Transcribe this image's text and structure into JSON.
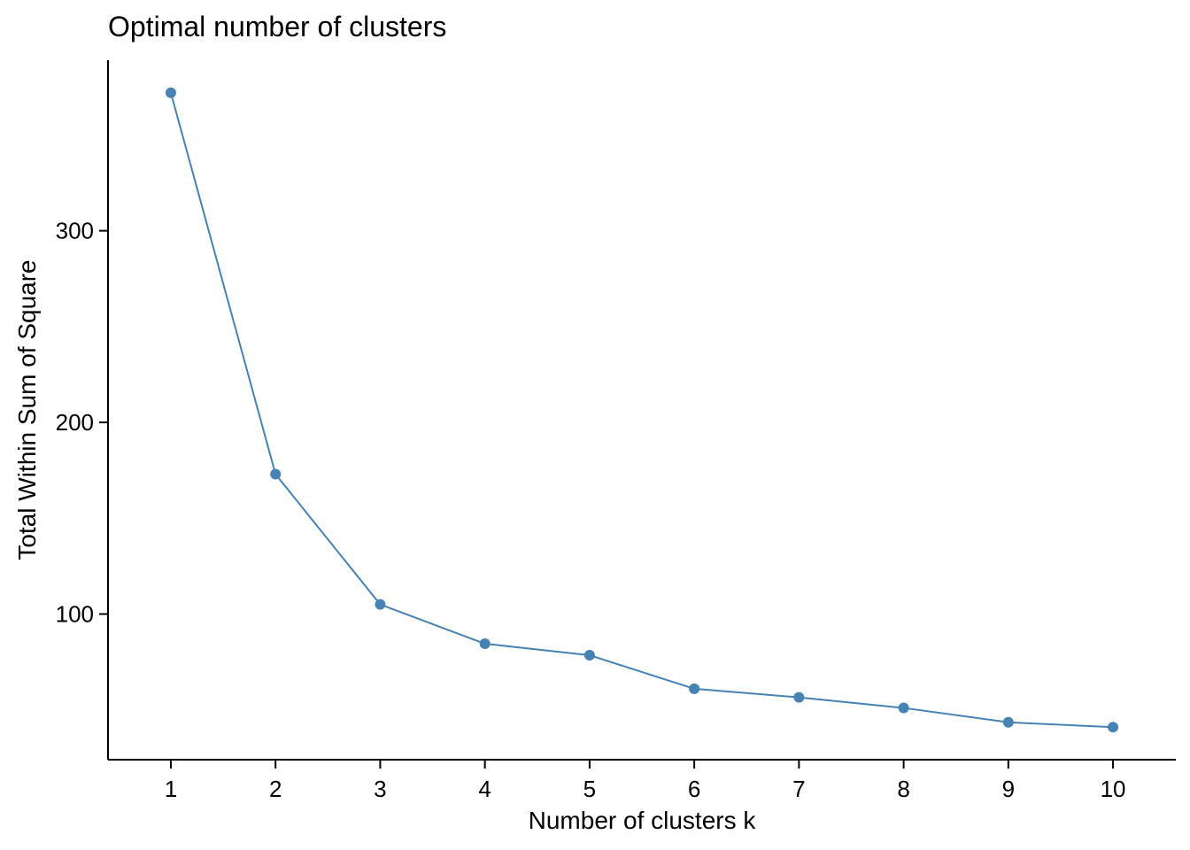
{
  "chart_data": {
    "type": "line",
    "title": "Optimal number of clusters",
    "xlabel": "Number of clusters k",
    "ylabel": "Total Within Sum of Square",
    "x": [
      1,
      2,
      3,
      4,
      5,
      6,
      7,
      8,
      9,
      10
    ],
    "series": [
      {
        "values": [
          372,
          173,
          105,
          84.5,
          78.5,
          61,
          56.5,
          51,
          43.5,
          41
        ]
      }
    ],
    "x_ticks": [
      "1",
      "2",
      "3",
      "4",
      "5",
      "6",
      "7",
      "8",
      "9",
      "10"
    ],
    "y_ticks": [
      100,
      200,
      300
    ],
    "xlim": [
      0.4,
      10.6
    ],
    "ylim": [
      24,
      389
    ],
    "grid": false,
    "legend": "none",
    "color": "#4682B4"
  }
}
